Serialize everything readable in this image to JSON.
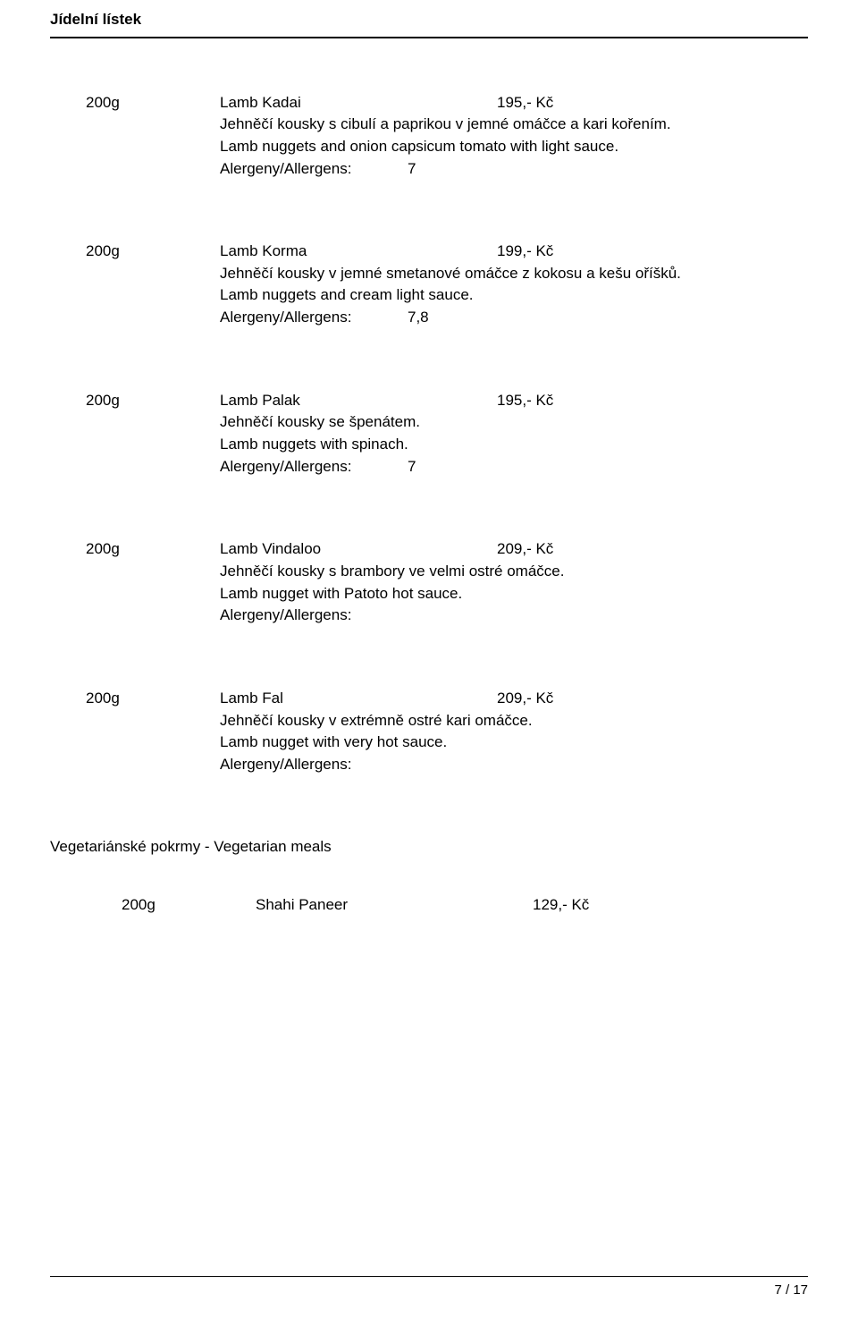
{
  "header": "Jídelní lístek",
  "allergen_label": "Alergeny/Allergens:",
  "items": [
    {
      "qty": "200g",
      "name": "Lamb Kadai",
      "price": "195,- Kč",
      "desc_cz": "Jehněčí kousky s cibulí a paprikou v jemné omáčce a kari kořením.",
      "desc_en": "Lamb nuggets and onion capsicum tomato with light sauce.",
      "allergens": "7"
    },
    {
      "qty": "200g",
      "name": "Lamb Korma",
      "price": "199,- Kč",
      "desc_cz": "Jehněčí kousky v jemné smetanové omáčce z kokosu a kešu oříšků.",
      "desc_en": "Lamb nuggets and cream light sauce.",
      "allergens": "7,8"
    },
    {
      "qty": "200g",
      "name": "Lamb Palak",
      "price": "195,- Kč",
      "desc_cz": "Jehněčí kousky se špenátem.",
      "desc_en": "Lamb nuggets with spinach.",
      "allergens": "7"
    },
    {
      "qty": "200g",
      "name": "Lamb Vindaloo",
      "price": "209,- Kč",
      "desc_cz": "Jehněčí kousky s brambory ve velmi ostré omáčce.",
      "desc_en": "Lamb nugget with Patoto hot sauce.",
      "allergens": ""
    },
    {
      "qty": "200g",
      "name": "Lamb Fal",
      "price": "209,- Kč",
      "desc_cz": "Jehněčí kousky v extrémně ostré kari omáčce.",
      "desc_en": "Lamb nugget with very hot sauce.",
      "allergens": ""
    }
  ],
  "section_heading": "Vegetariánské pokrmy - Vegetarian meals",
  "sub_item": {
    "qty": "200g",
    "name": "Shahi Paneer",
    "price": "129,- Kč"
  },
  "footer": "7 / 17"
}
